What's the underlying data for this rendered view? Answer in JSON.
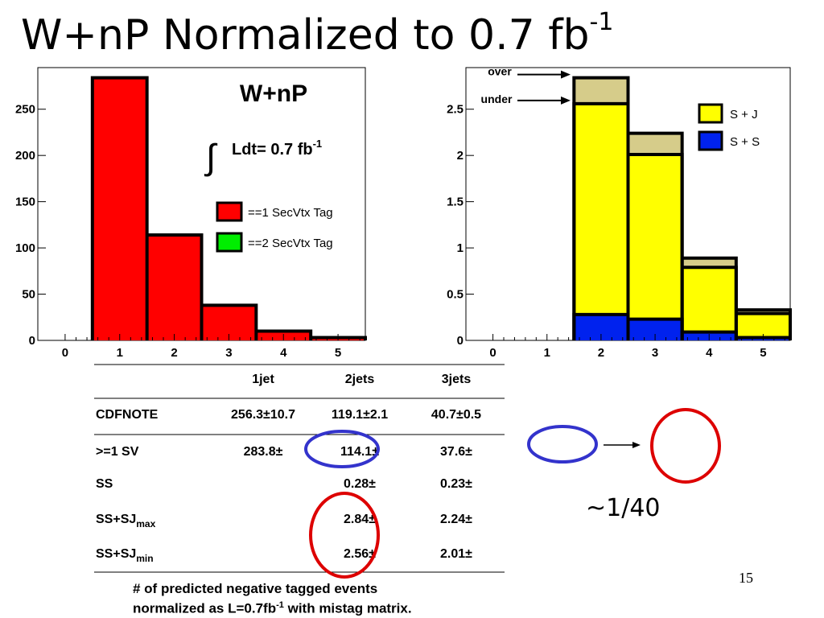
{
  "slide": {
    "title_main": "W+nP Normalized to 0.7 fb",
    "title_sup": "-1",
    "page_number": "15",
    "ratio_label": "~1/40",
    "footnote_line1": "# of predicted negative tagged events",
    "footnote_line2_a": "normalized as L=0.7fb",
    "footnote_line2_sup": "-1",
    "footnote_line2_b": " with mistag matrix."
  },
  "chart_data": [
    {
      "type": "bar",
      "title": "W+nP",
      "annotation": "Ldt= 0.7 fb",
      "annotation_sup": "-1",
      "annotation_symbol": "∫",
      "x_edges": [
        -0.5,
        0.5,
        1.5,
        2.5,
        3.5,
        4.5,
        5.5
      ],
      "xticks": [
        "0",
        "1",
        "2",
        "3",
        "4",
        "5"
      ],
      "yticks": [
        "0",
        "50",
        "100",
        "150",
        "200",
        "250"
      ],
      "ylim": [
        0,
        295
      ],
      "xlim": [
        -0.5,
        5.5
      ],
      "series": [
        {
          "name": "==1 SecVtx Tag",
          "color": "#ff0000",
          "values": [
            0,
            284,
            114,
            38,
            10,
            3
          ]
        },
        {
          "name": "==2 SecVtx Tag",
          "color": "#00ee00",
          "values": [
            0,
            0,
            0,
            0,
            0,
            0
          ]
        }
      ],
      "legend": "right",
      "grid": false
    },
    {
      "type": "bar",
      "stacked": true,
      "x_edges": [
        -0.5,
        0.5,
        1.5,
        2.5,
        3.5,
        4.5,
        5.5
      ],
      "xticks": [
        "0",
        "1",
        "2",
        "3",
        "4",
        "5"
      ],
      "yticks": [
        "0",
        "0.5",
        "1",
        "1.5",
        "2",
        "2.5"
      ],
      "ylim": [
        0,
        2.95
      ],
      "xlim": [
        -0.5,
        5.5
      ],
      "series": [
        {
          "name": "S + S",
          "color": "#0022ee",
          "values": [
            0,
            0,
            0.28,
            0.23,
            0.09,
            0.03
          ]
        },
        {
          "name": "S + J",
          "color": "#ffff00",
          "values": [
            0,
            0,
            2.28,
            1.78,
            0.7,
            0.26
          ]
        },
        {
          "name": "",
          "color": "#d6cc8a",
          "values": [
            0,
            0,
            0.28,
            0.23,
            0.1,
            0.04
          ]
        }
      ],
      "legend_items": [
        {
          "name": "S + J",
          "color": "#ffff00"
        },
        {
          "name": "S + S",
          "color": "#0022ee"
        }
      ],
      "arrow_labels": [
        "over",
        "under"
      ],
      "arrow_values": [
        2.84,
        2.56
      ],
      "legend": "top-right",
      "grid": false
    }
  ],
  "table": {
    "columns": [
      "",
      "1jet",
      "2jets",
      "3jets"
    ],
    "rows": [
      {
        "label": "CDFNOTE",
        "sub": "",
        "cells": [
          "256.3±10.7",
          "119.1±2.1",
          "40.7±0.5"
        ]
      },
      {
        "label": ">=1 SV",
        "sub": "",
        "cells": [
          "283.8±",
          "114.1±",
          "37.6±"
        ]
      },
      {
        "label": "SS",
        "sub": "",
        "cells": [
          "",
          "0.28±",
          "0.23±"
        ]
      },
      {
        "label": "SS+SJ",
        "sub": "max",
        "cells": [
          "",
          "2.84±",
          "2.24±"
        ]
      },
      {
        "label": "SS+SJ",
        "sub": "min",
        "cells": [
          "",
          "2.56±",
          "2.01±"
        ]
      }
    ]
  }
}
